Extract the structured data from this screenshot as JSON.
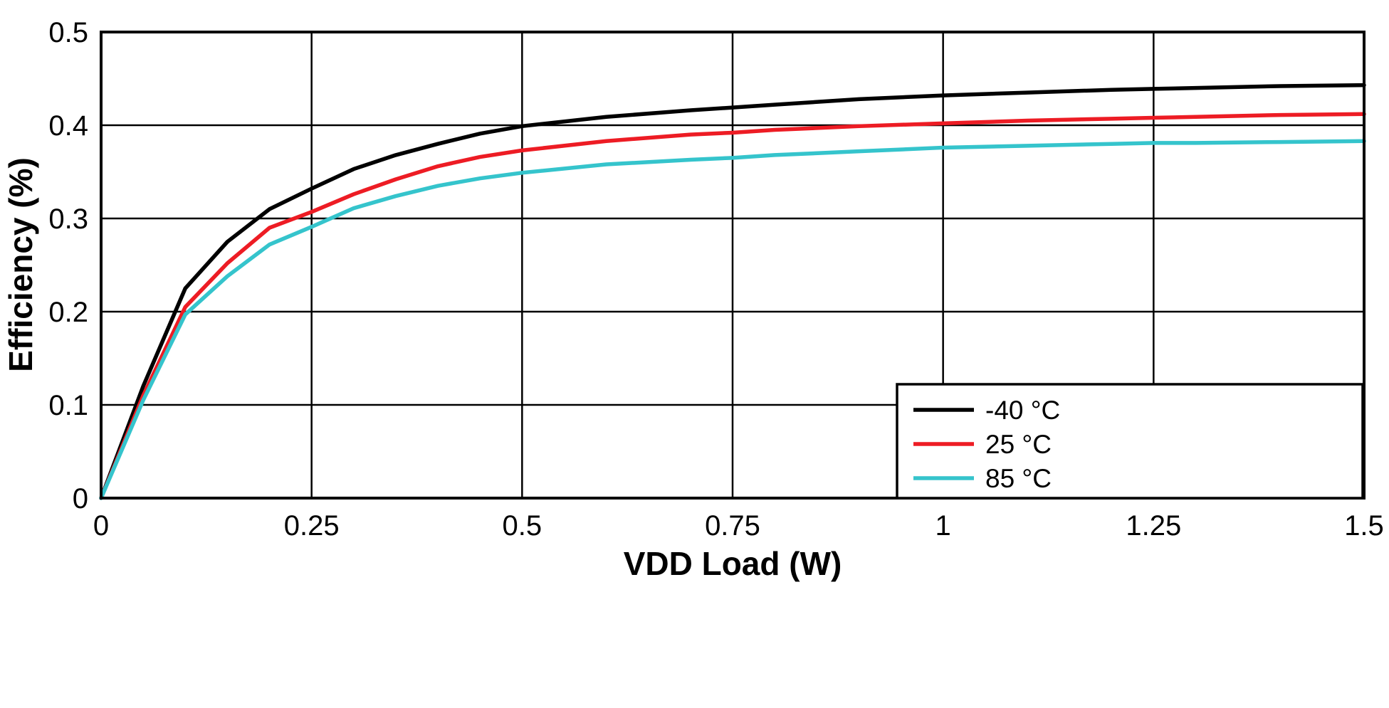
{
  "chart_data": {
    "type": "line",
    "title": "",
    "xlabel": "VDD Load (W)",
    "ylabel": "Efficiency (%)",
    "xlim": [
      0,
      1.5
    ],
    "ylim": [
      0,
      0.5
    ],
    "grid": true,
    "legend_position": "bottom-right",
    "x_ticks": [
      0,
      0.25,
      0.5,
      0.75,
      1,
      1.25,
      1.5
    ],
    "x_tick_labels": [
      "0",
      "0.25",
      "0.5",
      "0.75",
      "1",
      "1.25",
      "1.5"
    ],
    "y_ticks": [
      0,
      0.1,
      0.2,
      0.3,
      0.4,
      0.5
    ],
    "y_tick_labels": [
      "0",
      "0.1",
      "0.2",
      "0.3",
      "0.4",
      "0.5"
    ],
    "x": [
      0,
      0.05,
      0.1,
      0.15,
      0.2,
      0.25,
      0.3,
      0.35,
      0.4,
      0.45,
      0.5,
      0.6,
      0.7,
      0.75,
      0.8,
      0.9,
      1.0,
      1.1,
      1.2,
      1.25,
      1.3,
      1.4,
      1.5
    ],
    "series": [
      {
        "name": "-40 °C",
        "color": "#000000",
        "values": [
          0,
          0.12,
          0.225,
          0.275,
          0.31,
          0.332,
          0.353,
          0.368,
          0.38,
          0.391,
          0.399,
          0.409,
          0.416,
          0.419,
          0.422,
          0.428,
          0.432,
          0.435,
          0.438,
          0.439,
          0.44,
          0.442,
          0.443
        ]
      },
      {
        "name": "25 °C",
        "color": "#ED1C24",
        "values": [
          0,
          0.11,
          0.205,
          0.252,
          0.29,
          0.307,
          0.326,
          0.342,
          0.356,
          0.366,
          0.373,
          0.383,
          0.39,
          0.392,
          0.395,
          0.399,
          0.402,
          0.405,
          0.407,
          0.408,
          0.409,
          0.411,
          0.412
        ]
      },
      {
        "name": "85 °C",
        "color": "#35C4CC",
        "values": [
          0,
          0.105,
          0.197,
          0.238,
          0.272,
          0.291,
          0.311,
          0.324,
          0.335,
          0.343,
          0.349,
          0.358,
          0.363,
          0.365,
          0.368,
          0.372,
          0.376,
          0.378,
          0.38,
          0.381,
          0.381,
          0.382,
          0.383
        ]
      }
    ],
    "frame_color": "#000000",
    "grid_color": "#000000"
  }
}
